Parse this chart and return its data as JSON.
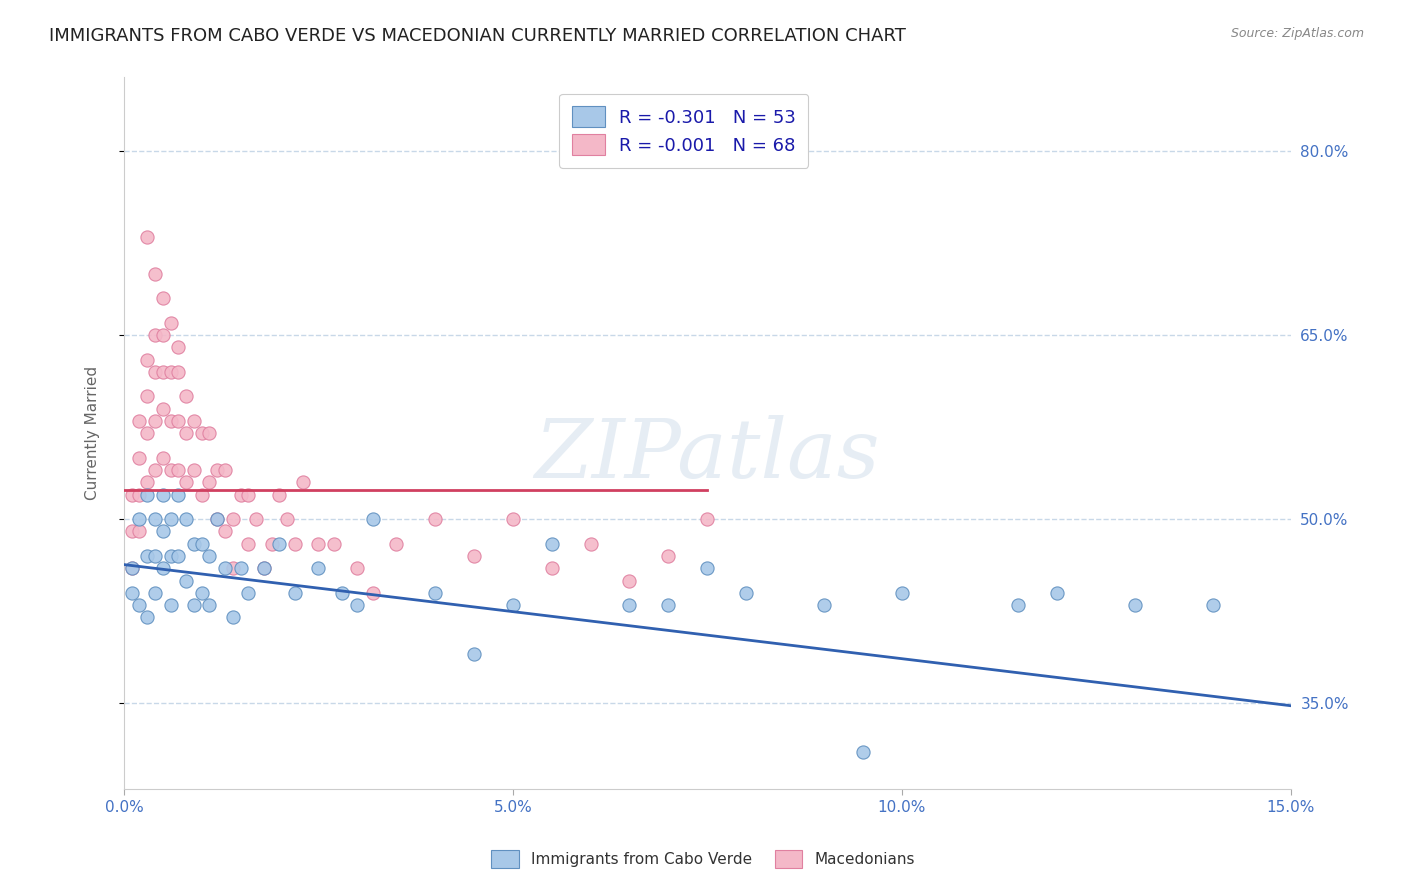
{
  "title": "IMMIGRANTS FROM CABO VERDE VS MACEDONIAN CURRENTLY MARRIED CORRELATION CHART",
  "source": "Source: ZipAtlas.com",
  "ylabel": "Currently Married",
  "xlim": [
    0.0,
    0.15
  ],
  "ylim": [
    0.28,
    0.86
  ],
  "yticks": [
    0.35,
    0.5,
    0.65,
    0.8
  ],
  "ytick_labels": [
    "35.0%",
    "50.0%",
    "65.0%",
    "80.0%"
  ],
  "xticks": [
    0.0,
    0.05,
    0.1,
    0.15
  ],
  "xtick_labels": [
    "0.0%",
    "5.0%",
    "10.0%",
    "15.0%"
  ],
  "blue_color": "#a8c8e8",
  "pink_color": "#f4b8c8",
  "blue_edge_color": "#6090c0",
  "pink_edge_color": "#e080a0",
  "blue_line_color": "#3060b0",
  "pink_line_color": "#d04060",
  "background_color": "#ffffff",
  "grid_color": "#c8d8e8",
  "title_color": "#222222",
  "axis_label_color": "#4472c4",
  "legend_R1": "R = -0.301",
  "legend_N1": "N = 53",
  "legend_R2": "R = -0.001",
  "legend_N2": "N = 68",
  "legend_label1": "Immigrants from Cabo Verde",
  "legend_label2": "Macedonians",
  "blue_scatter_x": [
    0.001,
    0.001,
    0.002,
    0.002,
    0.003,
    0.003,
    0.003,
    0.004,
    0.004,
    0.004,
    0.005,
    0.005,
    0.005,
    0.006,
    0.006,
    0.006,
    0.007,
    0.007,
    0.008,
    0.008,
    0.009,
    0.009,
    0.01,
    0.01,
    0.011,
    0.011,
    0.012,
    0.013,
    0.014,
    0.015,
    0.016,
    0.018,
    0.02,
    0.022,
    0.025,
    0.028,
    0.03,
    0.032,
    0.04,
    0.045,
    0.05,
    0.055,
    0.065,
    0.07,
    0.075,
    0.08,
    0.09,
    0.095,
    0.1,
    0.115,
    0.12,
    0.13,
    0.14
  ],
  "blue_scatter_y": [
    0.46,
    0.44,
    0.5,
    0.43,
    0.52,
    0.47,
    0.42,
    0.5,
    0.47,
    0.44,
    0.52,
    0.49,
    0.46,
    0.5,
    0.47,
    0.43,
    0.52,
    0.47,
    0.5,
    0.45,
    0.48,
    0.43,
    0.48,
    0.44,
    0.47,
    0.43,
    0.5,
    0.46,
    0.42,
    0.46,
    0.44,
    0.46,
    0.48,
    0.44,
    0.46,
    0.44,
    0.43,
    0.5,
    0.44,
    0.39,
    0.43,
    0.48,
    0.43,
    0.43,
    0.46,
    0.44,
    0.43,
    0.31,
    0.44,
    0.43,
    0.44,
    0.43,
    0.43
  ],
  "pink_scatter_x": [
    0.001,
    0.001,
    0.001,
    0.002,
    0.002,
    0.002,
    0.002,
    0.003,
    0.003,
    0.003,
    0.003,
    0.004,
    0.004,
    0.004,
    0.004,
    0.005,
    0.005,
    0.005,
    0.005,
    0.006,
    0.006,
    0.006,
    0.007,
    0.007,
    0.007,
    0.008,
    0.008,
    0.008,
    0.009,
    0.009,
    0.01,
    0.01,
    0.011,
    0.011,
    0.012,
    0.012,
    0.013,
    0.013,
    0.014,
    0.014,
    0.015,
    0.016,
    0.016,
    0.017,
    0.018,
    0.019,
    0.02,
    0.021,
    0.022,
    0.023,
    0.025,
    0.027,
    0.03,
    0.032,
    0.035,
    0.04,
    0.045,
    0.05,
    0.055,
    0.06,
    0.065,
    0.07,
    0.075,
    0.003,
    0.004,
    0.005,
    0.006,
    0.007
  ],
  "pink_scatter_y": [
    0.52,
    0.49,
    0.46,
    0.58,
    0.55,
    0.52,
    0.49,
    0.63,
    0.6,
    0.57,
    0.53,
    0.65,
    0.62,
    0.58,
    0.54,
    0.65,
    0.62,
    0.59,
    0.55,
    0.62,
    0.58,
    0.54,
    0.62,
    0.58,
    0.54,
    0.6,
    0.57,
    0.53,
    0.58,
    0.54,
    0.57,
    0.52,
    0.57,
    0.53,
    0.54,
    0.5,
    0.54,
    0.49,
    0.5,
    0.46,
    0.52,
    0.52,
    0.48,
    0.5,
    0.46,
    0.48,
    0.52,
    0.5,
    0.48,
    0.53,
    0.48,
    0.48,
    0.46,
    0.44,
    0.48,
    0.5,
    0.47,
    0.5,
    0.46,
    0.48,
    0.45,
    0.47,
    0.5,
    0.73,
    0.7,
    0.68,
    0.66,
    0.64
  ],
  "blue_trend_x": [
    0.0,
    0.15
  ],
  "blue_trend_y": [
    0.463,
    0.348
  ],
  "pink_trend_x": [
    0.0,
    0.075
  ],
  "pink_trend_y": [
    0.524,
    0.524
  ],
  "watermark_line1": "ZIP",
  "watermark_line2": "atlas",
  "watermark": "ZIPatlas",
  "title_fontsize": 13,
  "axis_tick_fontsize": 11,
  "ylabel_fontsize": 11
}
